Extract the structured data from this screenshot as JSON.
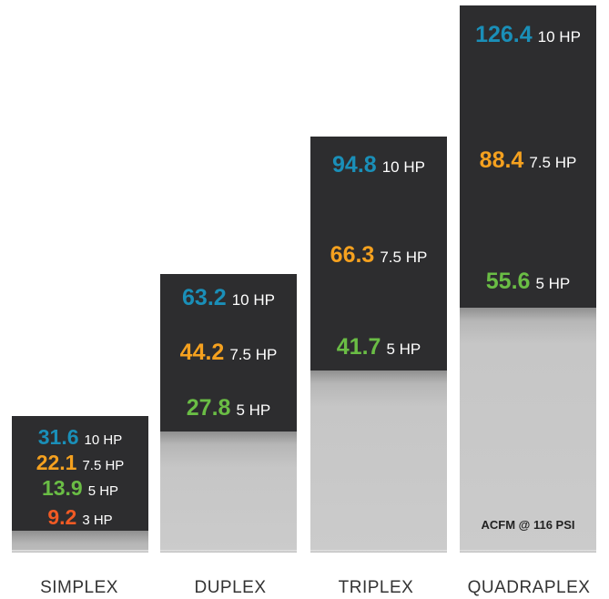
{
  "chart_data": {
    "type": "bar",
    "categories": [
      "SIMPLEX",
      "DUPLEX",
      "TRIPLEX",
      "QUADRAPLEX"
    ],
    "series": [
      {
        "name": "10 HP",
        "values": [
          31.6,
          63.2,
          94.8,
          126.4
        ]
      },
      {
        "name": "7.5 HP",
        "values": [
          22.1,
          44.2,
          66.3,
          88.4
        ]
      },
      {
        "name": "5 HP",
        "values": [
          13.9,
          27.8,
          41.7,
          55.6
        ]
      },
      {
        "name": "3 HP",
        "values": [
          9.2,
          null,
          null,
          null
        ]
      }
    ],
    "colors": {
      "10 HP": "#1a8fb8",
      "7.5 HP": "#f5a11f",
      "5 HP": "#6abd45",
      "3 HP": "#f15a24",
      "panel": "#2d2d2f",
      "base": "#c9c9c9"
    },
    "columns": [
      {
        "label": "SIMPLEX",
        "entries": [
          {
            "value": "31.6",
            "hp": "10 HP",
            "series": "10 HP"
          },
          {
            "value": "22.1",
            "hp": "7.5 HP",
            "series": "7.5 HP"
          },
          {
            "value": "13.9",
            "hp": "5 HP",
            "series": "5 HP"
          },
          {
            "value": "9.2",
            "hp": "3 HP",
            "series": "3 HP"
          }
        ]
      },
      {
        "label": "DUPLEX",
        "entries": [
          {
            "value": "63.2",
            "hp": "10 HP",
            "series": "10 HP"
          },
          {
            "value": "44.2",
            "hp": "7.5 HP",
            "series": "7.5 HP"
          },
          {
            "value": "27.8",
            "hp": "5 HP",
            "series": "5 HP"
          }
        ]
      },
      {
        "label": "TRIPLEX",
        "entries": [
          {
            "value": "94.8",
            "hp": "10 HP",
            "series": "10 HP"
          },
          {
            "value": "66.3",
            "hp": "7.5 HP",
            "series": "7.5 HP"
          },
          {
            "value": "41.7",
            "hp": "5 HP",
            "series": "5 HP"
          }
        ]
      },
      {
        "label": "QUADRAPLEX",
        "entries": [
          {
            "value": "126.4",
            "hp": "10 HP",
            "series": "10 HP"
          },
          {
            "value": "88.4",
            "hp": "7.5 HP",
            "series": "7.5 HP"
          },
          {
            "value": "55.6",
            "hp": "5 HP",
            "series": "5 HP"
          }
        ],
        "footnote": "ACFM @ 116 PSI"
      }
    ]
  }
}
